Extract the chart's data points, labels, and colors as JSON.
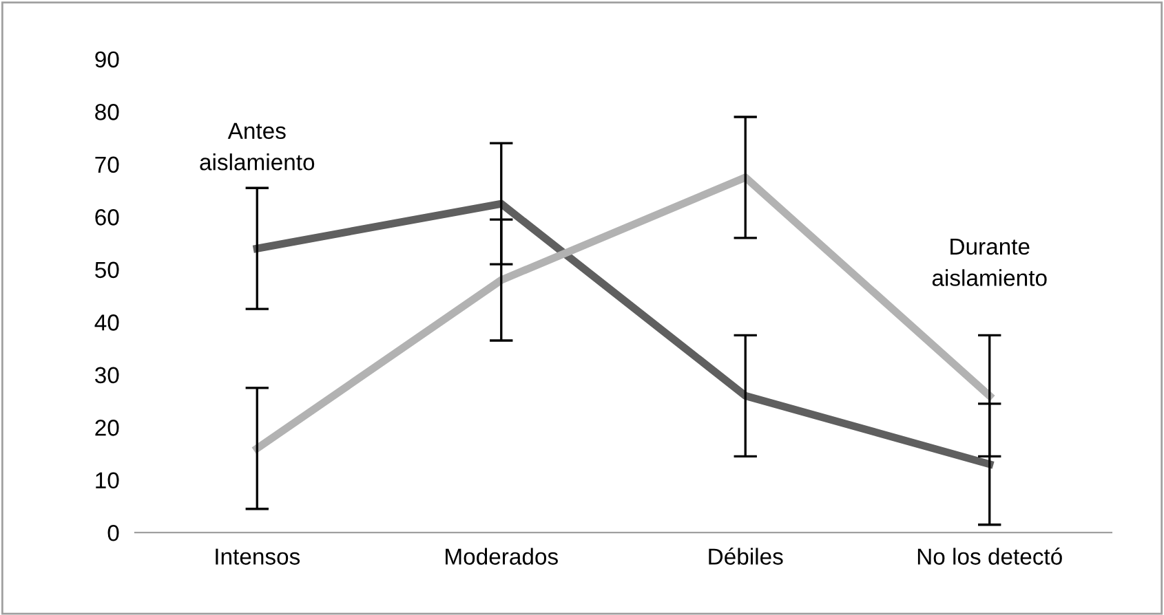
{
  "chart_data": {
    "type": "line",
    "categories": [
      "Intensos",
      "Moderados",
      "Débiles",
      "No los detectó"
    ],
    "series": [
      {
        "name": "Antes\naislamiento",
        "color": "#5f5f5f",
        "values": [
          54,
          62.5,
          26,
          13
        ],
        "errors": [
          11.5,
          11.5,
          11.5,
          11.5
        ]
      },
      {
        "name": "Durante\naislamiento",
        "color": "#b2b2b2",
        "values": [
          16,
          48,
          67.5,
          26
        ],
        "errors": [
          11.5,
          11.5,
          11.5,
          11.5
        ]
      }
    ],
    "ylim": [
      0,
      90
    ],
    "yticks": [
      0,
      10,
      20,
      30,
      40,
      50,
      60,
      70,
      80,
      90
    ],
    "grid": false,
    "legend": false,
    "marker": "none",
    "line_style": "solid"
  }
}
